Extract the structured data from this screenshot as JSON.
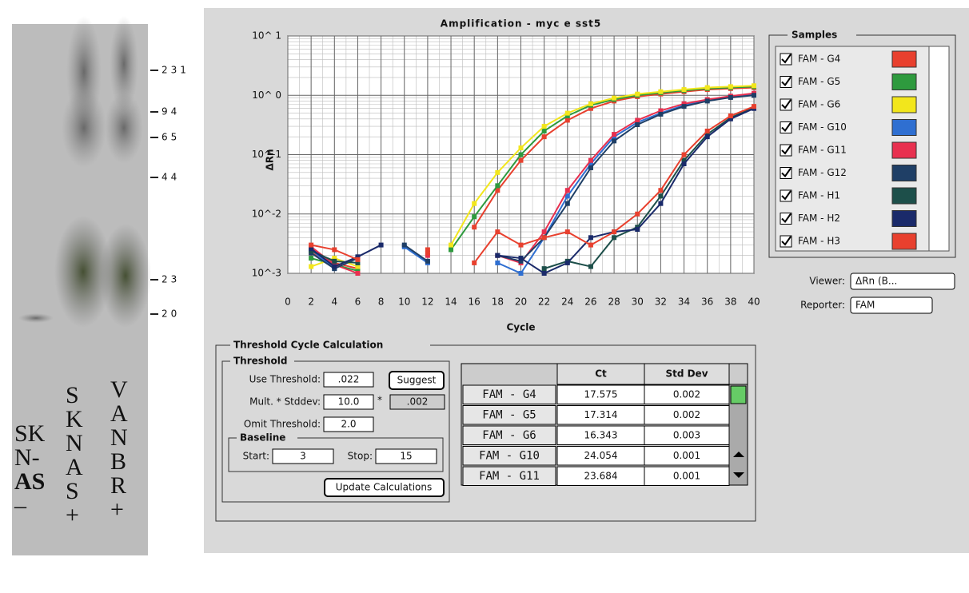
{
  "gel": {
    "markers": [
      "231",
      "94",
      "65",
      "44",
      "23",
      "20"
    ],
    "lanes": [
      [
        "SK",
        "N-",
        "AS",
        "–"
      ],
      [
        "S",
        "K",
        "N",
        "A",
        "S",
        "+"
      ],
      [
        "V",
        "A",
        "N",
        "B",
        "R",
        "+"
      ]
    ]
  },
  "app": {
    "chart_data": {
      "type": "line",
      "title": "Amplification - myc e sst5",
      "y_label": "ΔRn",
      "x_label": "Cycle",
      "log_y": true,
      "grid": true,
      "x": [
        2,
        4,
        6,
        8,
        10,
        12,
        14,
        16,
        18,
        20,
        22,
        24,
        26,
        28,
        30,
        32,
        34,
        36,
        38,
        40
      ],
      "xlim": [
        0,
        40
      ],
      "xticks": [
        0,
        2,
        4,
        6,
        8,
        10,
        12,
        14,
        16,
        18,
        20,
        22,
        24,
        26,
        28,
        30,
        32,
        34,
        36,
        38,
        40
      ],
      "ylim": [
        0.001,
        10
      ],
      "yticks": [
        {
          "value": 0.001,
          "label": "10^-3"
        },
        {
          "value": 0.01,
          "label": "10^-2"
        },
        {
          "value": 0.1,
          "label": "10^-1"
        },
        {
          "value": 1,
          "label": "10^ 0"
        },
        {
          "value": 10,
          "label": "10^ 1"
        }
      ],
      "series": [
        {
          "name": "FAM - G4",
          "color": "#e8402e",
          "values": [
            0.0022,
            0.0015,
            0.0012,
            null,
            null,
            0.0025,
            null,
            0.006,
            0.025,
            0.08,
            0.2,
            0.38,
            0.6,
            0.8,
            0.95,
            1.05,
            1.15,
            1.25,
            1.3,
            1.35
          ]
        },
        {
          "name": "FAM - G5",
          "color": "#2e9a3e",
          "values": [
            0.0018,
            0.0014,
            0.0011,
            null,
            null,
            null,
            0.0025,
            0.009,
            0.03,
            0.1,
            0.25,
            0.45,
            0.68,
            0.85,
            1.0,
            1.1,
            1.2,
            1.3,
            1.35,
            1.4
          ]
        },
        {
          "name": "FAM - G6",
          "color": "#f2e61c",
          "values": [
            0.0013,
            0.0018,
            0.0013,
            null,
            null,
            null,
            0.003,
            0.015,
            0.05,
            0.13,
            0.3,
            0.5,
            0.72,
            0.9,
            1.05,
            1.15,
            1.25,
            1.35,
            1.4,
            1.45
          ]
        },
        {
          "name": "FAM - G10",
          "color": "#2f6fd1",
          "values": [
            0.0025,
            0.0012,
            null,
            null,
            0.0028,
            0.0015,
            null,
            null,
            0.0015,
            0.001,
            0.004,
            0.02,
            0.07,
            0.2,
            0.35,
            0.5,
            0.68,
            0.82,
            0.95,
            1.05
          ]
        },
        {
          "name": "FAM - G11",
          "color": "#e8304f",
          "values": [
            0.0028,
            0.0014,
            0.001,
            null,
            null,
            0.002,
            null,
            null,
            0.002,
            0.0015,
            0.005,
            0.025,
            0.08,
            0.22,
            0.38,
            0.55,
            0.72,
            0.85,
            0.97,
            1.08
          ]
        },
        {
          "name": "FAM - G12",
          "color": "#1f3f66",
          "values": [
            0.0022,
            0.0012,
            0.0018,
            null,
            0.003,
            0.0016,
            null,
            null,
            0.002,
            0.0016,
            0.004,
            0.015,
            0.06,
            0.17,
            0.32,
            0.48,
            0.65,
            0.8,
            0.92,
            1.0
          ]
        },
        {
          "name": "FAM - H1",
          "color": "#1d4f4a",
          "values": [
            0.0024,
            0.0016,
            0.0015,
            null,
            null,
            null,
            null,
            null,
            null,
            null,
            0.0012,
            0.0016,
            0.0013,
            0.004,
            0.006,
            0.02,
            0.08,
            0.22,
            0.42,
            0.62
          ]
        },
        {
          "name": "FAM - H2",
          "color": "#1a2a6a",
          "values": [
            0.0026,
            0.0013,
            0.0019,
            0.003,
            null,
            null,
            null,
            null,
            0.002,
            0.0018,
            0.001,
            0.0015,
            0.004,
            0.005,
            0.0055,
            0.015,
            0.07,
            0.2,
            0.4,
            0.6
          ]
        },
        {
          "name": "FAM - H3",
          "color": "#e8402e",
          "values": [
            0.003,
            0.0025,
            0.0017,
            null,
            null,
            0.0022,
            null,
            0.0015,
            0.005,
            0.003,
            0.004,
            0.005,
            0.003,
            0.005,
            0.01,
            0.025,
            0.1,
            0.25,
            0.45,
            0.65
          ]
        }
      ]
    },
    "samples_title": "Samples",
    "viewer": {
      "label": "Viewer:",
      "value": "ΔRn (B..."
    },
    "reporter": {
      "label": "Reporter:",
      "value": "FAM"
    },
    "calc": {
      "title": "Threshold Cycle Calculation",
      "threshold_title": "Threshold",
      "use_threshold": {
        "label": "Use Threshold:",
        "value": ".022"
      },
      "suggest": "Suggest",
      "mult": {
        "label": "Mult. * Stddev:",
        "value": "10.0",
        "times": "*",
        "result": ".002"
      },
      "omit": {
        "label": "Omit Threshold:",
        "value": "2.0"
      },
      "baseline": {
        "title": "Baseline",
        "start_label": "Start:",
        "start": 3,
        "stop_label": "Stop:",
        "stop": 15
      },
      "update": "Update Calculations",
      "table": {
        "headers": [
          "Ct",
          "Std Dev"
        ],
        "rows": [
          [
            "FAM - G4",
            17.575,
            0.002
          ],
          [
            "FAM - G5",
            17.314,
            0.002
          ],
          [
            "FAM - G6",
            16.343,
            0.003
          ],
          [
            "FAM - G10",
            24.054,
            0.001
          ],
          [
            "FAM - G11",
            23.684,
            0.001
          ]
        ]
      }
    }
  }
}
